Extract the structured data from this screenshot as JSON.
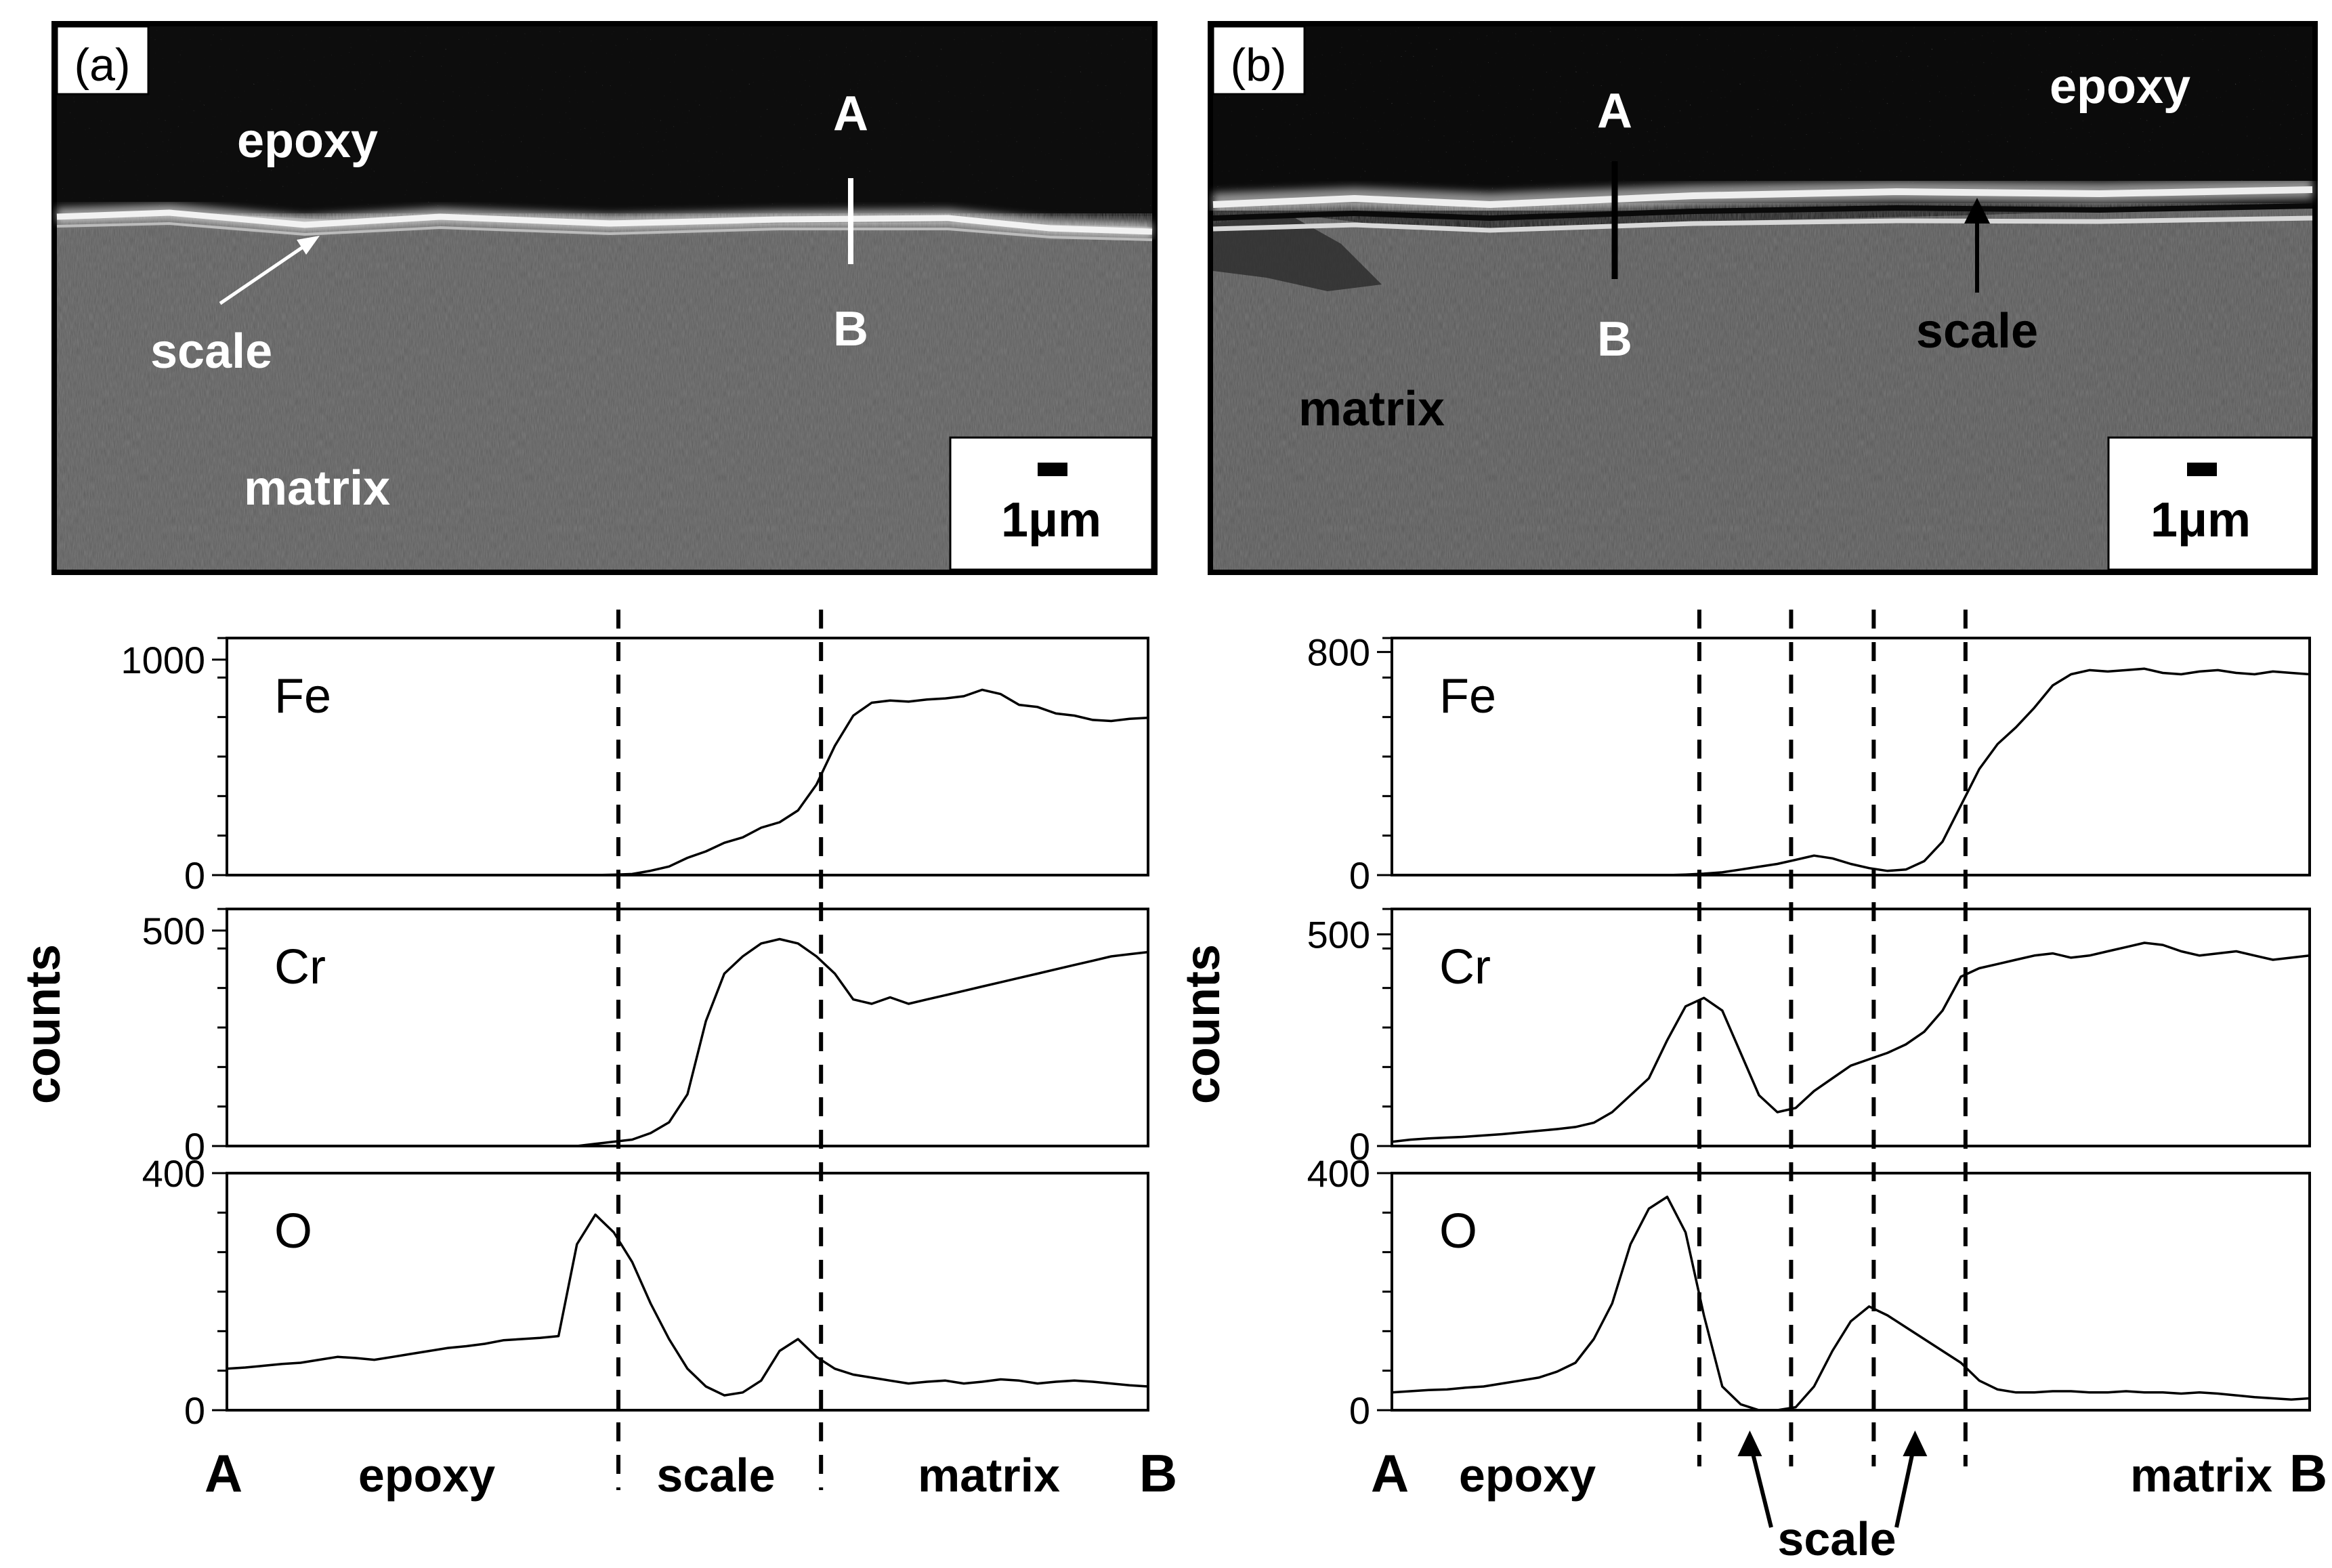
{
  "panels": [
    {
      "id": "a",
      "tag": "(a)",
      "micrograph": {
        "labels": {
          "epoxy": "epoxy",
          "scale": "scale",
          "matrix": "matrix",
          "A": "A",
          "B": "B"
        },
        "scale_bar": "1μm"
      },
      "chart_data": {
        "type": "line",
        "ylabel": "counts",
        "x_labels": [
          "A",
          "epoxy",
          "scale",
          "matrix",
          "B"
        ],
        "x": [
          0,
          2,
          4,
          6,
          8,
          10,
          12,
          14,
          16,
          18,
          20,
          22,
          24,
          26,
          28,
          30,
          32,
          34,
          36,
          38,
          40,
          42,
          44,
          46,
          48,
          50,
          52,
          54,
          56,
          58,
          60,
          62,
          64,
          66,
          68,
          70,
          72,
          74,
          76,
          78,
          80,
          82,
          84,
          86,
          88,
          90,
          92,
          94,
          96,
          98,
          100
        ],
        "boundaries": [
          42.5,
          64.5
        ],
        "subplots": [
          {
            "name": "Fe",
            "ylim": [
              0,
              1100
            ],
            "yticks": [
              0,
              1000
            ],
            "values": [
              0,
              0,
              0,
              0,
              0,
              0,
              0,
              0,
              0,
              0,
              0,
              0,
              0,
              0,
              0,
              0,
              0,
              0,
              0,
              0,
              0,
              2,
              5,
              20,
              40,
              80,
              110,
              150,
              175,
              220,
              245,
              300,
              420,
              600,
              740,
              800,
              810,
              805,
              815,
              820,
              830,
              860,
              840,
              790,
              780,
              750,
              740,
              720,
              715,
              725,
              730
            ]
          },
          {
            "name": "Cr",
            "ylim": [
              0,
              550
            ],
            "yticks": [
              0,
              500
            ],
            "values": [
              0,
              0,
              0,
              0,
              0,
              0,
              0,
              0,
              0,
              0,
              0,
              0,
              0,
              0,
              0,
              0,
              0,
              0,
              0,
              0,
              5,
              10,
              15,
              30,
              55,
              120,
              290,
              400,
              440,
              470,
              480,
              470,
              440,
              400,
              340,
              330,
              345,
              330,
              340,
              350,
              360,
              370,
              380,
              390,
              400,
              410,
              420,
              430,
              440,
              445,
              450
            ]
          },
          {
            "name": "O",
            "ylim": [
              0,
              400
            ],
            "yticks": [
              0,
              400
            ],
            "values": [
              70,
              72,
              75,
              78,
              80,
              85,
              90,
              88,
              85,
              90,
              95,
              100,
              105,
              108,
              112,
              118,
              120,
              122,
              125,
              280,
              330,
              300,
              250,
              180,
              120,
              70,
              40,
              25,
              30,
              50,
              100,
              120,
              90,
              70,
              60,
              55,
              50,
              45,
              48,
              50,
              45,
              48,
              52,
              50,
              45,
              48,
              50,
              48,
              45,
              42,
              40
            ]
          }
        ]
      }
    },
    {
      "id": "b",
      "tag": "(b)",
      "micrograph": {
        "labels": {
          "epoxy": "epoxy",
          "scale": "scale",
          "matrix": "matrix",
          "A": "A",
          "B": "B"
        },
        "scale_bar": "1μm"
      },
      "chart_data": {
        "type": "line",
        "ylabel": "counts",
        "x_labels": [
          "A",
          "epoxy",
          "matrix",
          "B"
        ],
        "arrow_label": "scale",
        "x": [
          0,
          2,
          4,
          6,
          8,
          10,
          12,
          14,
          16,
          18,
          20,
          22,
          24,
          26,
          28,
          30,
          32,
          34,
          36,
          38,
          40,
          42,
          44,
          46,
          48,
          50,
          52,
          54,
          56,
          58,
          60,
          62,
          64,
          66,
          68,
          70,
          72,
          74,
          76,
          78,
          80,
          82,
          84,
          86,
          88,
          90,
          92,
          94,
          96,
          98,
          100
        ],
        "boundaries": [
          33.5,
          43.5,
          52.5,
          62.5
        ],
        "subplots": [
          {
            "name": "Fe",
            "ylim": [
              0,
              850
            ],
            "yticks": [
              0,
              800
            ],
            "values": [
              0,
              0,
              0,
              0,
              0,
              0,
              0,
              0,
              0,
              0,
              0,
              0,
              0,
              0,
              0,
              0,
              2,
              5,
              10,
              20,
              30,
              40,
              55,
              70,
              60,
              40,
              25,
              15,
              20,
              50,
              120,
              250,
              380,
              470,
              530,
              600,
              680,
              720,
              735,
              730,
              735,
              740,
              725,
              720,
              730,
              735,
              725,
              720,
              730,
              725,
              720
            ]
          },
          {
            "name": "Cr",
            "ylim": [
              0,
              560
            ],
            "yticks": [
              0,
              500
            ],
            "values": [
              10,
              15,
              18,
              20,
              22,
              25,
              28,
              32,
              36,
              40,
              45,
              55,
              80,
              120,
              160,
              250,
              330,
              350,
              320,
              220,
              120,
              80,
              90,
              130,
              160,
              190,
              205,
              220,
              240,
              270,
              320,
              400,
              420,
              430,
              440,
              450,
              455,
              445,
              450,
              460,
              470,
              480,
              475,
              460,
              450,
              455,
              460,
              450,
              440,
              445,
              450
            ]
          },
          {
            "name": "O",
            "ylim": [
              0,
              400
            ],
            "yticks": [
              0,
              400
            ],
            "values": [
              30,
              32,
              34,
              35,
              38,
              40,
              45,
              50,
              55,
              65,
              80,
              120,
              180,
              280,
              340,
              360,
              300,
              160,
              40,
              10,
              0,
              0,
              5,
              40,
              100,
              150,
              175,
              160,
              140,
              120,
              100,
              80,
              50,
              35,
              30,
              30,
              32,
              32,
              30,
              30,
              32,
              30,
              30,
              28,
              30,
              28,
              25,
              22,
              20,
              18,
              20
            ]
          }
        ]
      }
    }
  ]
}
